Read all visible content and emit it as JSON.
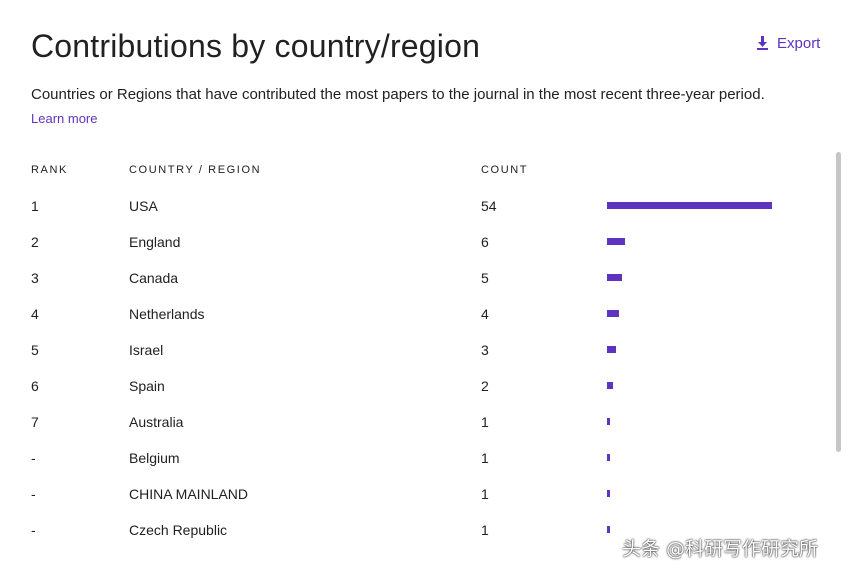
{
  "header": {
    "title": "Contributions by country/region",
    "export_label": "Export",
    "export_icon": "download-icon",
    "description": "Countries or Regions that have contributed the most papers to the journal in the most recent three-year period.",
    "learn_more": "Learn more"
  },
  "table": {
    "columns": [
      "RANK",
      "COUNTRY / REGION",
      "COUNT"
    ],
    "bar_color": "#5e33bf",
    "rows": [
      {
        "rank": "1",
        "country": "USA",
        "count": "54",
        "value": 54
      },
      {
        "rank": "2",
        "country": "England",
        "count": "6",
        "value": 6
      },
      {
        "rank": "3",
        "country": "Canada",
        "count": "5",
        "value": 5
      },
      {
        "rank": "4",
        "country": "Netherlands",
        "count": "4",
        "value": 4
      },
      {
        "rank": "5",
        "country": "Israel",
        "count": "3",
        "value": 3
      },
      {
        "rank": "6",
        "country": "Spain",
        "count": "2",
        "value": 2
      },
      {
        "rank": "7",
        "country": "Australia",
        "count": "1",
        "value": 1
      },
      {
        "rank": "-",
        "country": "Belgium",
        "count": "1",
        "value": 1
      },
      {
        "rank": "-",
        "country": "CHINA MAINLAND",
        "count": "1",
        "value": 1
      },
      {
        "rank": "-",
        "country": "Czech Republic",
        "count": "1",
        "value": 1
      }
    ]
  },
  "watermark": "头条 @科研写作研究所"
}
